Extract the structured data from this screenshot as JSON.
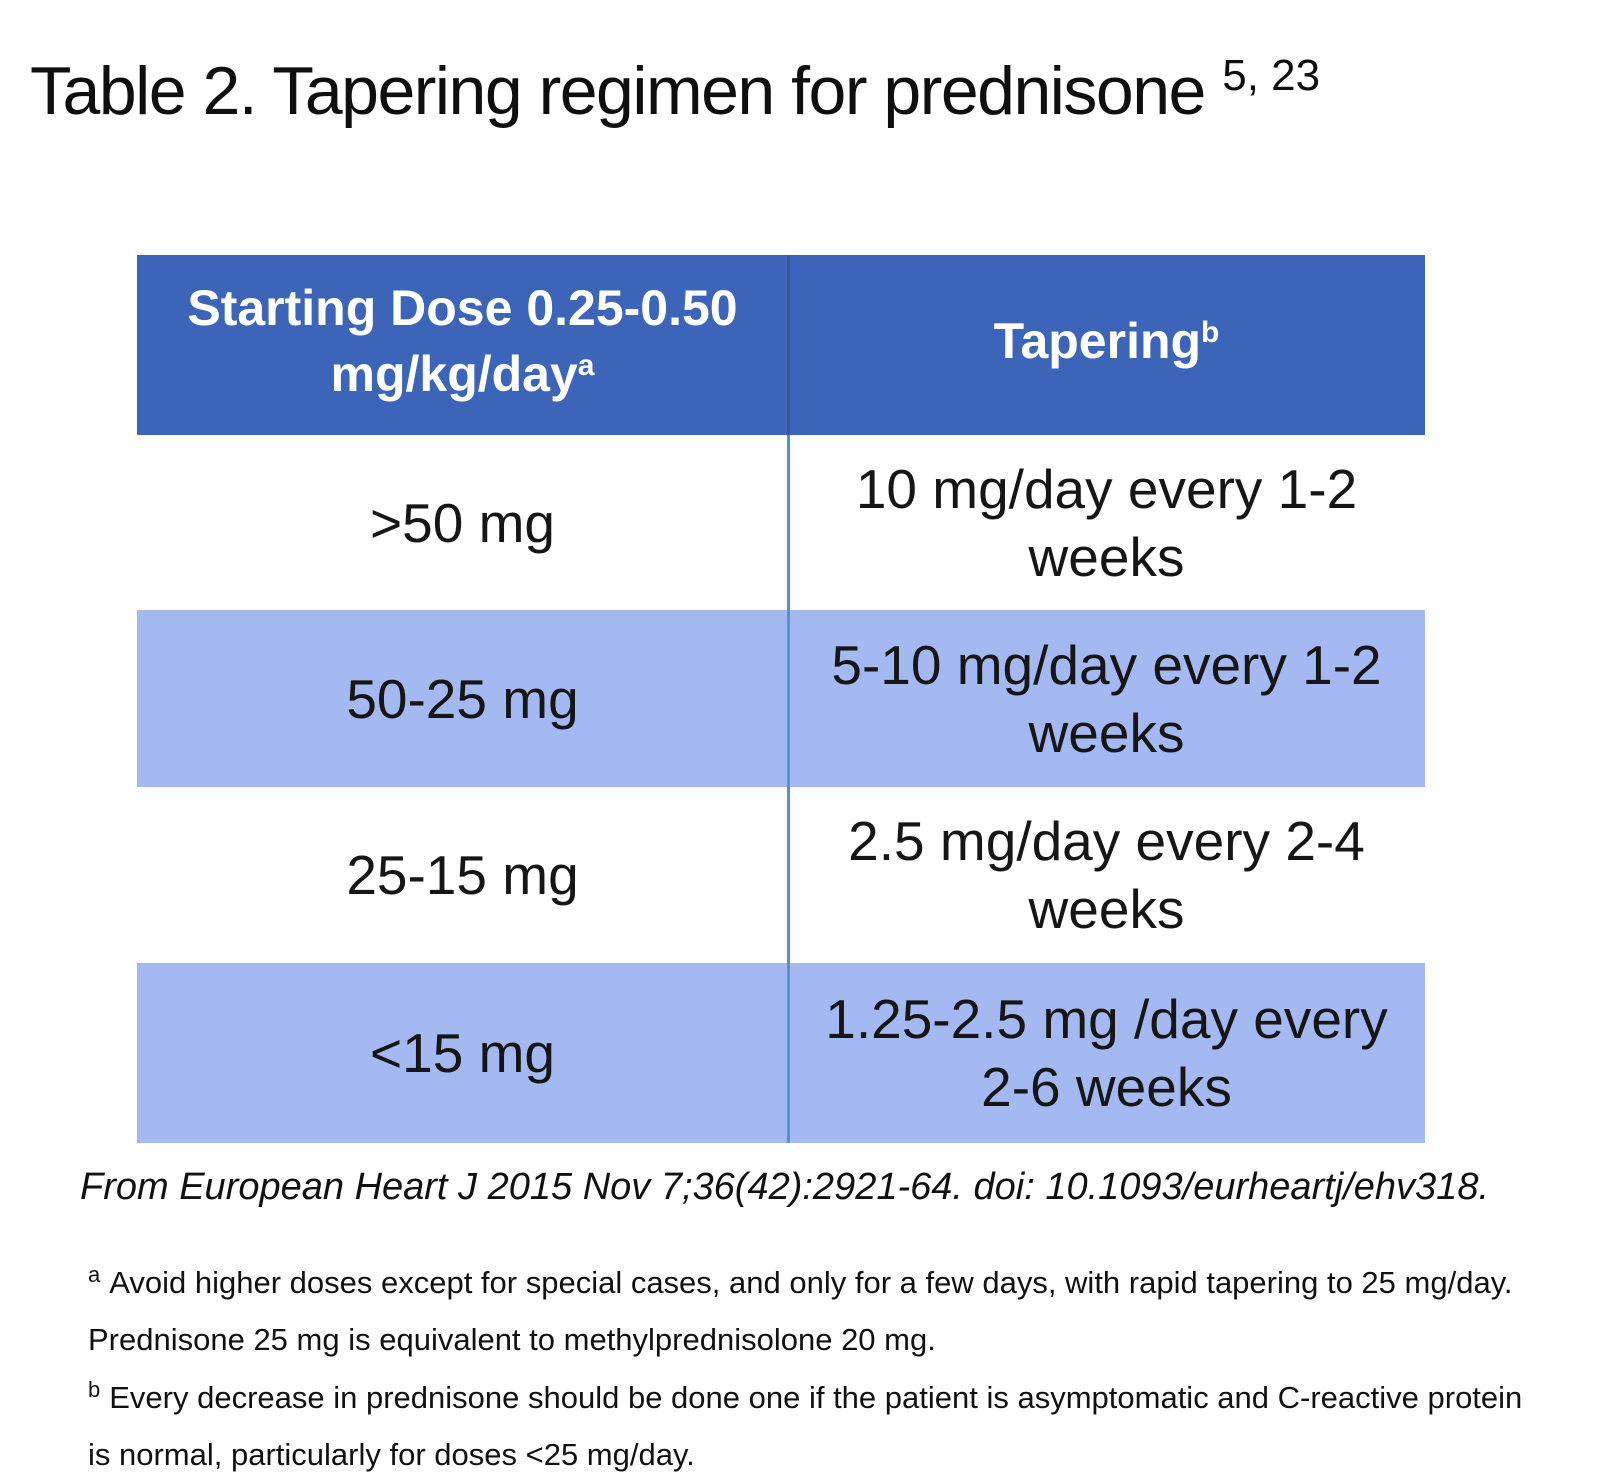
{
  "title": {
    "text": "Table 2. Tapering regimen for prednisone",
    "superscript": "5, 23"
  },
  "table": {
    "header": {
      "col1_line1": "Starting Dose 0.25-0.50",
      "col1_line2": "mg/kg/day",
      "col1_sup": "a",
      "col2_label": "Tapering",
      "col2_sup": "b"
    },
    "rows": [
      {
        "dose": ">50 mg",
        "taper_line1": "10 mg/day every 1-2",
        "taper_line2": "weeks"
      },
      {
        "dose": "50-25 mg",
        "taper_line1": "5-10 mg/day every 1-2",
        "taper_line2": "weeks"
      },
      {
        "dose": "25-15 mg",
        "taper_line1": "2.5 mg/day every 2-4",
        "taper_line2": "weeks"
      },
      {
        "dose": "<15 mg",
        "taper_line1": "1.25-2.5 mg /day every",
        "taper_line2": "2-6 weeks"
      }
    ]
  },
  "citation": "From European Heart J 2015 Nov 7;36(42):2921-64. doi: 10.1093/eurheartj/ehv318.",
  "footnotes": [
    {
      "marker": "a",
      "line1": "Avoid higher doses except for special cases, and only for a few days, with rapid tapering to 25 mg/day.",
      "line2": "Prednisone 25 mg is equivalent to methylprednisolone 20 mg."
    },
    {
      "marker": "b",
      "line1": "Every decrease in prednisone should be done one if the patient is asymptomatic and C-reactive protein",
      "line2": "is normal, particularly for doses <25 mg/day."
    }
  ],
  "colors": {
    "header_bg": "#3c64b9",
    "row_alt_bg": "#a4b8f2",
    "row_bg": "#ffffff",
    "divider": "#5890c8",
    "header_text": "#ffffff",
    "body_text": "#141414"
  },
  "chart_data": {
    "type": "table",
    "title": "Table 2. Tapering regimen for prednisone",
    "columns": [
      "Starting Dose 0.25-0.50 mg/kg/day",
      "Tapering"
    ],
    "rows": [
      [
        ">50 mg",
        "10 mg/day every 1-2 weeks"
      ],
      [
        "50-25 mg",
        "5-10 mg/day every 1-2 weeks"
      ],
      [
        "25-15 mg",
        "2.5 mg/day every 2-4 weeks"
      ],
      [
        "<15 mg",
        "1.25-2.5 mg /day every 2-6 weeks"
      ]
    ]
  }
}
